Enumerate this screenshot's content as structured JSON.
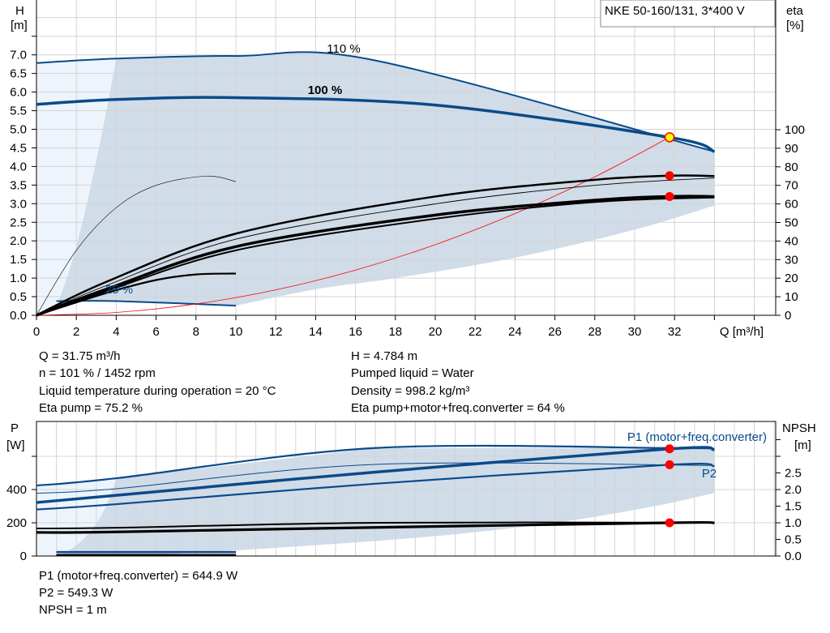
{
  "title_box": "NKE 50-160/131, 3*400 V",
  "colors": {
    "curve_blue": "#0a4a8a",
    "shade": "#d0dce8",
    "shade_light": "#edf4fc",
    "grid": "#d4d4d4",
    "red": "#ff0000",
    "duty_point": "#ffff00"
  },
  "chart_data": [
    {
      "type": "line",
      "title": "",
      "xlabel": "Q [m³/h]",
      "ylabel": "H\n[m]",
      "ylabel_top": "H",
      "ylabel_unit": "[m]",
      "y2label_top": "eta",
      "y2label_unit": "[%]",
      "xlim": [
        0,
        37
      ],
      "ylim": [
        0,
        8.5
      ],
      "y2lim": [
        0,
        185
      ],
      "grid": true,
      "xticks": [
        "0",
        "2",
        "4",
        "6",
        "8",
        "10",
        "12",
        "14",
        "16",
        "18",
        "20",
        "22",
        "24",
        "26",
        "28",
        "30",
        "32"
      ],
      "yticks": [
        "0.0",
        "0.5",
        "1.0",
        "1.5",
        "2.0",
        "2.5",
        "3.0",
        "3.5",
        "4.0",
        "4.5",
        "5.0",
        "5.5",
        "6.0",
        "6.5",
        "7.0"
      ],
      "y2ticks": [
        "0",
        "10",
        "20",
        "30",
        "40",
        "50",
        "60",
        "70",
        "80",
        "90",
        "100"
      ],
      "labels": {
        "speed_110": "110 %",
        "speed_100": "100 %",
        "speed_25": "25 %"
      },
      "series": [
        {
          "key": "h110",
          "axis": "H",
          "x": [
            0,
            4,
            10,
            17,
            34
          ],
          "y": [
            6.78,
            6.9,
            6.97,
            6.85,
            4.4
          ]
        },
        {
          "key": "h100",
          "axis": "H",
          "x": [
            0,
            4,
            10,
            20,
            31.75,
            34
          ],
          "y": [
            5.67,
            5.8,
            5.85,
            5.65,
            4.784,
            4.4
          ]
        },
        {
          "key": "h25",
          "axis": "H",
          "x": [
            1,
            4,
            10
          ],
          "y": [
            0.38,
            0.38,
            0.26
          ]
        },
        {
          "key": "system",
          "axis": "H",
          "x": [
            0,
            4,
            8,
            12,
            16,
            20,
            24,
            28,
            31.75
          ],
          "y": [
            0,
            0.076,
            0.304,
            0.683,
            1.215,
            1.898,
            2.733,
            3.72,
            4.784
          ]
        },
        {
          "key": "eta_pump_100",
          "axis": "eta",
          "x": [
            0,
            3.5,
            10,
            20,
            28,
            31.75,
            34
          ],
          "y": [
            0,
            18,
            44,
            64,
            73,
            75.2,
            75
          ]
        },
        {
          "key": "eta_total_100",
          "axis": "eta",
          "x": [
            0,
            3.5,
            10,
            20,
            28,
            31.75,
            34
          ],
          "y": [
            0,
            14,
            37,
            54,
            62,
            64,
            64
          ]
        },
        {
          "key": "eta_pump_110",
          "axis": "eta",
          "x": [
            0,
            3.5,
            10,
            20,
            28,
            34
          ],
          "y": [
            0,
            16,
            41,
            60,
            70,
            74
          ]
        },
        {
          "key": "eta_total_110",
          "axis": "eta",
          "x": [
            0,
            3.5,
            10,
            20,
            28,
            34
          ],
          "y": [
            0,
            13,
            35,
            52,
            61,
            63.5
          ]
        },
        {
          "key": "eta_pump_25",
          "axis": "eta",
          "x": [
            0,
            2,
            4,
            6,
            8.5,
            10
          ],
          "y": [
            0,
            35,
            58,
            70,
            75,
            72
          ]
        },
        {
          "key": "eta_total_25",
          "axis": "eta",
          "x": [
            0,
            3.5,
            6,
            8,
            10
          ],
          "y": [
            0,
            12,
            19,
            22,
            22.5
          ]
        }
      ],
      "points": [
        {
          "x": 31.75,
          "y": 4.784,
          "axis": "H",
          "color": "#ffff00"
        },
        {
          "x": 31.75,
          "y": 75.2,
          "axis": "eta",
          "color": "#ff0000"
        },
        {
          "x": 31.75,
          "y": 64,
          "axis": "eta",
          "color": "#ff0000"
        }
      ]
    },
    {
      "type": "line",
      "ylabel_top": "P",
      "ylabel_unit": "[W]",
      "y2label_top": "NPSH",
      "y2label_unit": "[m]",
      "ylim": [
        0,
        810
      ],
      "y2lim": [
        0,
        4.05
      ],
      "grid": true,
      "yticks": [
        "0",
        "200",
        "400"
      ],
      "y2ticks": [
        "0.0",
        "0.5",
        "1.0",
        "1.5",
        "2.0",
        "2.5"
      ],
      "labels": {
        "p1": "P1 (motor+freq.converter)",
        "p2": "P2"
      },
      "series": [
        {
          "key": "p1_110",
          "axis": "P",
          "x": [
            0,
            4,
            17,
            31.75,
            34
          ],
          "y": [
            424,
            468,
            650,
            650,
            646
          ]
        },
        {
          "key": "p1_100",
          "axis": "P",
          "x": [
            0,
            3.5,
            17,
            31.75,
            34
          ],
          "y": [
            322,
            360,
            505,
            644.9,
            640
          ]
        },
        {
          "key": "p2_110",
          "axis": "P",
          "x": [
            0,
            4,
            17,
            34
          ],
          "y": [
            378,
            405,
            551,
            545
          ]
        },
        {
          "key": "p2_100",
          "axis": "P",
          "x": [
            0,
            4,
            17,
            31.75,
            34
          ],
          "y": [
            280,
            312,
            435,
            549.3,
            540
          ]
        },
        {
          "key": "npsh_110",
          "axis": "NPSH",
          "x": [
            0,
            4,
            17,
            34
          ],
          "y": [
            0.83,
            0.85,
            1.0,
            1.0
          ]
        },
        {
          "key": "npsh_100",
          "axis": "NPSH",
          "x": [
            0,
            3.5,
            17,
            31.75,
            34
          ],
          "y": [
            0.71,
            0.72,
            0.86,
            1.0,
            1.0
          ]
        },
        {
          "key": "p_25",
          "axis": "P",
          "x": [
            1,
            10
          ],
          "y": [
            24,
            24
          ]
        },
        {
          "key": "npsh_25",
          "axis": "NPSH",
          "x": [
            1,
            10
          ],
          "y": [
            0.03,
            0.03
          ]
        }
      ],
      "points": [
        {
          "x": 31.75,
          "y": 644.9,
          "axis": "P",
          "color": "#ff0000"
        },
        {
          "x": 31.75,
          "y": 549.3,
          "axis": "P",
          "color": "#ff0000"
        },
        {
          "x": 31.75,
          "y": 1.0,
          "axis": "NPSH",
          "color": "#ff0000"
        }
      ]
    }
  ],
  "results": {
    "q": "Q = 31.75 m³/h",
    "n": "n = 101 % / 1452 rpm",
    "temp": "Liquid temperature during operation = 20 °C",
    "eta_pump": "Eta pump = 75.2 %",
    "h": "H = 4.784 m",
    "liquid": "Pumped liquid = Water",
    "density": "Density = 998.2 kg/m³",
    "eta_total": "Eta pump+motor+freq.converter = 64 %",
    "p1": "P1 (motor+freq.converter) = 644.9 W",
    "p2": "P2 = 549.3 W",
    "npsh": "NPSH = 1 m"
  }
}
